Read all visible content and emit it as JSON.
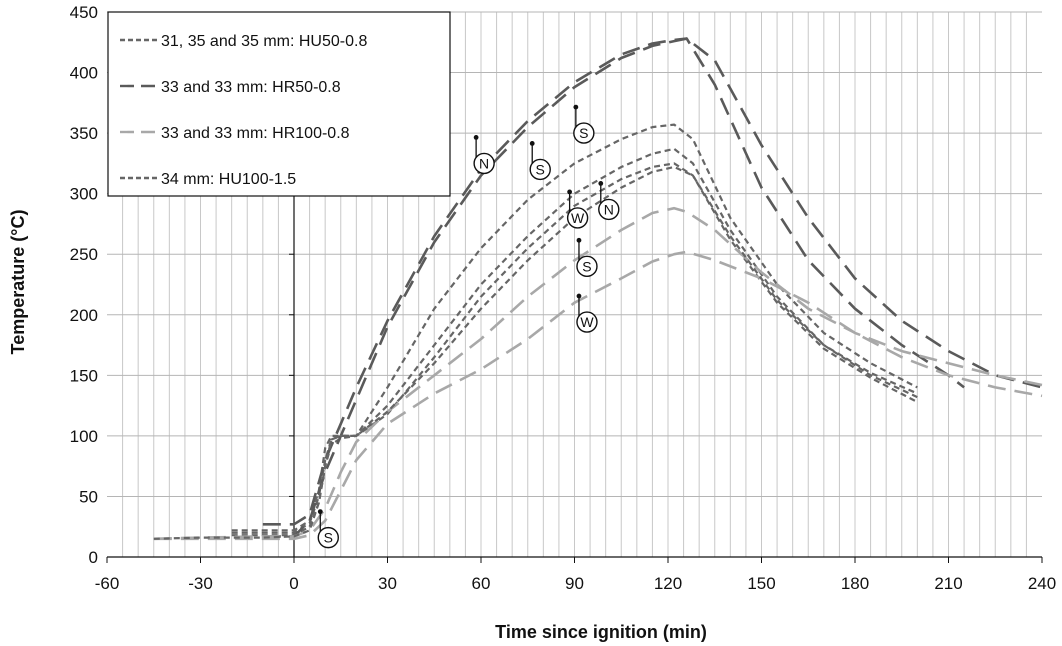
{
  "chart_data": {
    "type": "line",
    "title": "",
    "xlabel": "Time since ignition (min)",
    "ylabel": "Temperature (°C)",
    "xlim": [
      -60,
      240
    ],
    "ylim": [
      0,
      450
    ],
    "x_ticks": [
      -60,
      -30,
      0,
      30,
      60,
      90,
      120,
      150,
      180,
      210,
      240
    ],
    "y_ticks": [
      0,
      50,
      100,
      150,
      200,
      250,
      300,
      350,
      400,
      450
    ],
    "grid": "vertical minor every 5 min, horizontal major every 50 °C",
    "legend_position": "top-left",
    "legend": [
      {
        "label": "31, 35 and 35 mm: HU50-0.8",
        "style": "dotted-dash",
        "color": "#666666"
      },
      {
        "label": "33 and 33 mm: HR50-0.8",
        "style": "long-dash",
        "color": "#5a5a5a"
      },
      {
        "label": "33 and 33 mm: HR100-0.8",
        "style": "long-dash",
        "color": "#a8a8a8"
      },
      {
        "label": "34 mm: HU100-1.5",
        "style": "dotted-dash",
        "color": "#666666"
      }
    ],
    "series": [
      {
        "name": "31, 35 and 35 mm: HU50-0.8",
        "style": "short",
        "color": "#666666",
        "x": [
          -20,
          -10,
          -5,
          0,
          5,
          8,
          10,
          12,
          15,
          20,
          30,
          45,
          60,
          75,
          90,
          105,
          115,
          122,
          128,
          140,
          155,
          170,
          185,
          200
        ],
        "y": [
          22,
          22,
          22,
          22,
          30,
          55,
          90,
          100,
          100,
          100,
          140,
          205,
          255,
          295,
          325,
          345,
          355,
          357,
          345,
          280,
          225,
          185,
          160,
          140
        ]
      },
      {
        "name": "31, 35 and 35 mm: HU50-0.8",
        "style": "short",
        "color": "#666666",
        "x": [
          -20,
          -10,
          -5,
          0,
          5,
          8,
          10,
          12,
          15,
          20,
          30,
          45,
          60,
          75,
          90,
          105,
          115,
          122,
          128,
          140,
          155,
          170,
          185,
          200
        ],
        "y": [
          20,
          20,
          20,
          20,
          28,
          50,
          80,
          97,
          100,
          100,
          125,
          175,
          225,
          265,
          300,
          322,
          333,
          337,
          325,
          270,
          215,
          175,
          150,
          132
        ]
      },
      {
        "name": "31, 35 and 35 mm: HU50-0.8",
        "style": "short",
        "color": "#666666",
        "x": [
          -20,
          -10,
          -5,
          0,
          5,
          8,
          10,
          12,
          15,
          20,
          30,
          45,
          60,
          75,
          90,
          105,
          115,
          122,
          128,
          140,
          155,
          170,
          185,
          200
        ],
        "y": [
          18,
          18,
          18,
          18,
          25,
          45,
          75,
          93,
          98,
          100,
          118,
          165,
          215,
          255,
          290,
          312,
          322,
          325,
          315,
          262,
          210,
          172,
          148,
          128
        ]
      },
      {
        "name": "33 and 33 mm: HR50-0.8",
        "style": "long",
        "color": "#5a5a5a",
        "x": [
          -10,
          -5,
          0,
          5,
          10,
          15,
          20,
          30,
          45,
          60,
          75,
          90,
          105,
          115,
          122,
          126,
          135,
          150,
          165,
          180,
          195,
          210,
          215
        ],
        "y": [
          27,
          27,
          27,
          35,
          80,
          110,
          140,
          195,
          265,
          320,
          360,
          392,
          415,
          424,
          427,
          428,
          390,
          305,
          245,
          205,
          175,
          150,
          140
        ]
      },
      {
        "name": "33 and 33 mm: HR50-0.8",
        "style": "long",
        "color": "#5a5a5a",
        "x": [
          -10,
          -5,
          0,
          5,
          10,
          15,
          20,
          30,
          45,
          60,
          75,
          90,
          105,
          115,
          122,
          126,
          135,
          150,
          165,
          180,
          195,
          210,
          225,
          240
        ],
        "y": [
          17,
          17,
          17,
          30,
          70,
          100,
          130,
          190,
          260,
          315,
          355,
          388,
          412,
          422,
          426,
          428,
          410,
          340,
          280,
          230,
          195,
          170,
          150,
          140
        ]
      },
      {
        "name": "33 and 33 mm: HR100-0.8",
        "style": "long",
        "color": "#a8a8a8",
        "x": [
          -45,
          -30,
          -10,
          0,
          5,
          10,
          15,
          20,
          30,
          45,
          60,
          75,
          90,
          105,
          115,
          122,
          126,
          135,
          150,
          165,
          180,
          195,
          210,
          225,
          240
        ],
        "y": [
          15,
          16,
          17,
          17,
          22,
          40,
          70,
          95,
          120,
          150,
          180,
          215,
          245,
          270,
          284,
          288,
          285,
          270,
          235,
          205,
          185,
          170,
          160,
          150,
          142
        ]
      },
      {
        "name": "33 and 33 mm: HR100-0.8",
        "style": "long",
        "color": "#a8a8a8",
        "x": [
          -45,
          -30,
          -10,
          0,
          5,
          10,
          15,
          20,
          30,
          45,
          60,
          75,
          90,
          105,
          115,
          122,
          126,
          135,
          150,
          165,
          180,
          195,
          210,
          225,
          240
        ],
        "y": [
          15,
          15,
          15,
          15,
          18,
          30,
          55,
          80,
          110,
          135,
          155,
          180,
          210,
          230,
          244,
          250,
          252,
          245,
          230,
          210,
          185,
          165,
          150,
          140,
          133
        ]
      },
      {
        "name": "34 mm: HU100-1.5",
        "style": "short",
        "color": "#666666",
        "x": [
          -45,
          -30,
          -10,
          0,
          5,
          8,
          10,
          12,
          15,
          20,
          30,
          45,
          60,
          75,
          90,
          105,
          115,
          122,
          128,
          140,
          155,
          170,
          185,
          200
        ],
        "y": [
          15,
          16,
          16,
          17,
          22,
          45,
          75,
          97,
          100,
          100,
          120,
          160,
          205,
          245,
          280,
          305,
          318,
          322,
          315,
          265,
          212,
          175,
          152,
          135
        ]
      }
    ],
    "annotations": [
      {
        "letter": "N",
        "x": 61,
        "y": 325
      },
      {
        "letter": "S",
        "x": 79,
        "y": 320
      },
      {
        "letter": "S",
        "x": 93,
        "y": 350
      },
      {
        "letter": "W",
        "x": 91,
        "y": 280
      },
      {
        "letter": "N",
        "x": 101,
        "y": 287
      },
      {
        "letter": "S",
        "x": 94,
        "y": 240
      },
      {
        "letter": "W",
        "x": 94,
        "y": 194
      },
      {
        "letter": "S",
        "x": 11,
        "y": 16
      }
    ]
  }
}
